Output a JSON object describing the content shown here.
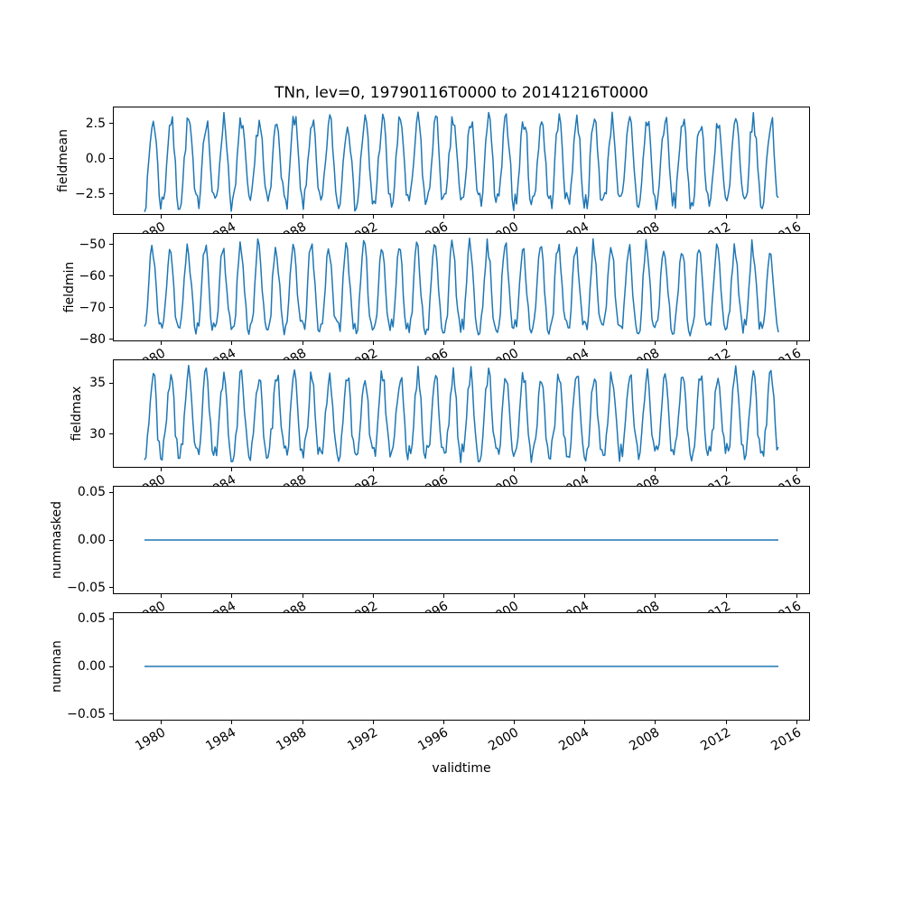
{
  "chart_data": {
    "type": "line",
    "title": "TNn, lev=0, 19790116T0000 to 20141216T0000",
    "xlabel": "validtime",
    "line_color": "#1f77b4",
    "grid": false,
    "legend": "none",
    "x": {
      "start_year": 1979,
      "end_year": 2014,
      "samples_per_year": 12,
      "first_sample": "1979-01-16T00:00",
      "last_sample": "2014-12-16T00:00",
      "xlim": [
        1977.25,
        2016.75
      ],
      "ticks": [
        1980,
        1984,
        1988,
        1992,
        1996,
        2000,
        2004,
        2008,
        2012,
        2016
      ],
      "tick_labels": [
        "1980",
        "1984",
        "1988",
        "1992",
        "1996",
        "2000",
        "2004",
        "2008",
        "2012",
        "2016"
      ]
    },
    "subplots": [
      {
        "ylabel": "fieldmean",
        "ylim": [
          -4.0,
          3.7
        ],
        "yticks": [
          2.5,
          0.0,
          -2.5
        ],
        "ytick_labels": [
          "2.5",
          "0.0",
          "−2.5"
        ],
        "value_range": [
          -3.8,
          3.4
        ],
        "series_model": {
          "climatology": [
            -3.1,
            -2.9,
            -1.9,
            -0.3,
            1.2,
            2.3,
            2.7,
            2.3,
            1.1,
            -0.7,
            -2.3,
            -3.1
          ],
          "noise_amp": 0.7,
          "seed": 7
        }
      },
      {
        "ylabel": "fieldmin",
        "ylim": [
          -80.6,
          -46.4
        ],
        "yticks": [
          -50,
          -60,
          -70,
          -80
        ],
        "ytick_labels": [
          "−50",
          "−60",
          "−70",
          "−80"
        ],
        "value_range": [
          -79,
          -48
        ],
        "series_model": {
          "climatology": [
            -76,
            -75,
            -70,
            -62,
            -55,
            -50.5,
            -52,
            -57,
            -64,
            -71,
            -75,
            -76.5
          ],
          "noise_amp": 2.5,
          "seed": 11
        }
      },
      {
        "ylabel": "fieldmax",
        "ylim": [
          26.7,
          37.3
        ],
        "yticks": [
          35,
          30
        ],
        "ytick_labels": [
          "35",
          "30"
        ],
        "value_range": [
          27.2,
          36.8
        ],
        "series_model": {
          "climatology": [
            28.2,
            28.5,
            29.6,
            31.4,
            33.6,
            35.3,
            35.9,
            34.9,
            32.7,
            30.3,
            28.9,
            28.1
          ],
          "noise_amp": 0.9,
          "seed": 23
        }
      },
      {
        "ylabel": "nummasked",
        "ylim": [
          -0.057,
          0.057
        ],
        "yticks": [
          0.05,
          0.0,
          -0.05
        ],
        "ytick_labels": [
          "0.05",
          "0.00",
          "−0.05"
        ],
        "value_range": [
          0,
          0
        ],
        "series_model": {
          "climatology": [
            0,
            0,
            0,
            0,
            0,
            0,
            0,
            0,
            0,
            0,
            0,
            0
          ],
          "noise_amp": 0,
          "seed": 1
        }
      },
      {
        "ylabel": "numnan",
        "ylim": [
          -0.057,
          0.057
        ],
        "yticks": [
          0.05,
          0.0,
          -0.05
        ],
        "ytick_labels": [
          "0.05",
          "0.00",
          "−0.05"
        ],
        "value_range": [
          0,
          0
        ],
        "series_model": {
          "climatology": [
            0,
            0,
            0,
            0,
            0,
            0,
            0,
            0,
            0,
            0,
            0,
            0
          ],
          "noise_amp": 0,
          "seed": 2
        }
      }
    ]
  }
}
